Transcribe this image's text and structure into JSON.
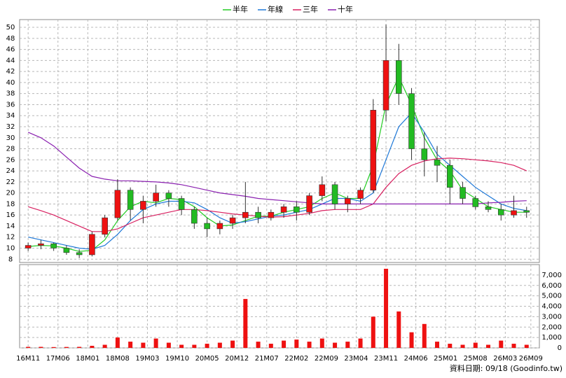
{
  "chart_data": {
    "type": "candlestick",
    "x": [
      0,
      3,
      6,
      9,
      12,
      15,
      18,
      21,
      24,
      27,
      30,
      33,
      36,
      39,
      42,
      45,
      48,
      51,
      54,
      57,
      60,
      63,
      66,
      69,
      72,
      75,
      78,
      81,
      84,
      87,
      90,
      93,
      96,
      99,
      102,
      105,
      108,
      111,
      114,
      117
    ],
    "open": [
      10,
      10.5,
      10.8,
      10,
      9.2,
      8.8,
      12.5,
      15.5,
      20.5,
      17,
      18.5,
      20,
      19,
      17,
      14.5,
      13.5,
      14.5,
      15.5,
      16.5,
      15.5,
      16.5,
      17.5,
      16.5,
      19.5,
      21.5,
      18,
      19,
      20.5,
      35,
      44,
      38,
      28,
      26,
      25,
      21,
      19,
      17.5,
      17,
      16,
      16.8
    ],
    "high": [
      11,
      11.5,
      11,
      10.5,
      9.8,
      13,
      16,
      22.5,
      21,
      19.5,
      21.5,
      20.5,
      19.5,
      17.5,
      15.5,
      15,
      16,
      22,
      17.5,
      17,
      18,
      18.5,
      20,
      23,
      22,
      19.5,
      21,
      37,
      50.5,
      47,
      39,
      31,
      28.5,
      26,
      22,
      19.5,
      18.5,
      18,
      19.5,
      17.5
    ],
    "low": [
      9.5,
      9.8,
      9.5,
      8.8,
      8.2,
      8.5,
      12,
      15,
      15,
      14.5,
      17.5,
      17.5,
      16,
      13.5,
      12,
      12.5,
      13.5,
      14.5,
      14.5,
      15,
      15.5,
      15,
      16,
      18.5,
      17,
      16.5,
      18,
      20,
      33,
      36,
      26,
      23,
      22,
      18,
      18,
      17,
      16.5,
      15,
      15.5,
      15.5
    ],
    "close": [
      10.5,
      10.8,
      10,
      9.2,
      8.8,
      12.5,
      15.5,
      20.5,
      17,
      18.5,
      20,
      19,
      17,
      14.5,
      13.5,
      14.5,
      15.5,
      16.5,
      15.5,
      16.5,
      17.5,
      16.5,
      19.5,
      21.5,
      18,
      19,
      20.5,
      35,
      44,
      38,
      28,
      26,
      25,
      21,
      19,
      17.5,
      17,
      16,
      16.8,
      16.5
    ],
    "up_color": "#ee1111",
    "down_color": "#22bb22",
    "series": [
      {
        "name": "半年",
        "color": "#22cc22",
        "values": [
          10.3,
          10.5,
          10.4,
          10,
          9.4,
          9.6,
          11.5,
          15,
          17.5,
          18.5,
          18.2,
          19,
          18.8,
          17.5,
          15.5,
          14,
          14.2,
          15,
          15.8,
          15.8,
          16.5,
          17,
          17.5,
          19,
          20,
          19,
          19,
          25,
          36,
          41,
          36,
          30,
          26,
          24,
          20.5,
          19,
          17.5,
          17,
          16.5,
          16.5
        ]
      },
      {
        "name": "年線",
        "color": "#1e78d8",
        "values": [
          12,
          11.5,
          11,
          10.5,
          10,
          9.8,
          10.5,
          12.5,
          15,
          17,
          18,
          18.5,
          18.5,
          18.2,
          17,
          15.5,
          14.5,
          14.8,
          15.3,
          15.8,
          16,
          16.5,
          17,
          18,
          19,
          19,
          18.5,
          20,
          26,
          32,
          34.5,
          31,
          27,
          25,
          23,
          21,
          19.5,
          18,
          17.2,
          16.8
        ]
      },
      {
        "name": "三年",
        "color": "#d82060",
        "values": [
          17.5,
          16.8,
          16,
          15,
          14,
          13,
          13,
          13.5,
          14.5,
          15.5,
          16,
          16.5,
          17,
          17,
          16.8,
          16.5,
          16.2,
          16,
          15.8,
          15.6,
          15.7,
          16,
          16.3,
          16.8,
          17,
          17,
          17,
          18,
          21,
          23.5,
          25,
          25.8,
          26.2,
          26.3,
          26.2,
          26,
          25.8,
          25.5,
          25,
          24
        ]
      },
      {
        "name": "十年",
        "color": "#8a20b0",
        "values": [
          31,
          30,
          28.5,
          26.5,
          24.5,
          23,
          22.5,
          22.2,
          22.2,
          22.1,
          22,
          21.8,
          21.5,
          21,
          20.5,
          20,
          19.7,
          19.4,
          19,
          18.8,
          18.6,
          18.4,
          18.2,
          18,
          18,
          18,
          18,
          18,
          18,
          18,
          18,
          18,
          18,
          18,
          18,
          18,
          18.2,
          18.3,
          18.5,
          18.6
        ]
      }
    ],
    "xlim": [
      -2,
      120
    ],
    "xticks": [
      {
        "value": 0,
        "label": "16M11"
      },
      {
        "value": 7,
        "label": "17M06"
      },
      {
        "value": 14,
        "label": "18M01"
      },
      {
        "value": 21,
        "label": "18M08"
      },
      {
        "value": 28,
        "label": "19M03"
      },
      {
        "value": 35,
        "label": "19M10"
      },
      {
        "value": 42,
        "label": "20M05"
      },
      {
        "value": 49,
        "label": "20M12"
      },
      {
        "value": 56,
        "label": "21M07"
      },
      {
        "value": 63,
        "label": "22M02"
      },
      {
        "value": 70,
        "label": "22M09"
      },
      {
        "value": 77,
        "label": "23M04"
      },
      {
        "value": 84,
        "label": "23M11"
      },
      {
        "value": 91,
        "label": "24M06"
      },
      {
        "value": 98,
        "label": "25M01"
      },
      {
        "value": 105,
        "label": "25M08"
      },
      {
        "value": 112,
        "label": "26M03"
      },
      {
        "value": 118,
        "label": "26M09"
      }
    ],
    "ylim": [
      7.4,
      51.4
    ],
    "yticks": [
      8,
      10,
      12,
      14,
      16,
      18,
      20,
      22,
      24,
      26,
      28,
      30,
      32,
      34,
      36,
      38,
      40,
      42,
      44,
      46,
      48,
      50
    ],
    "grid": true,
    "volume": {
      "color": "#ee1111",
      "values": [
        100,
        100,
        80,
        90,
        100,
        200,
        300,
        1000,
        600,
        500,
        900,
        500,
        300,
        300,
        400,
        500,
        700,
        4700,
        600,
        400,
        700,
        800,
        600,
        900,
        500,
        600,
        900,
        3000,
        7600,
        3500,
        1500,
        2300,
        600,
        400,
        300,
        500,
        300,
        700,
        400,
        300
      ],
      "ylim": [
        0,
        8000
      ],
      "yticks": [
        0,
        {
          "value": 1000,
          "label": "1,000"
        },
        {
          "value": 2000,
          "label": "2,000"
        },
        {
          "value": 3000,
          "label": "3,000"
        },
        {
          "value": 4000,
          "label": "4,000"
        },
        {
          "value": 5000,
          "label": "5,000"
        },
        {
          "value": 6000,
          "label": "6,000"
        },
        {
          "value": 7000,
          "label": "7,000"
        }
      ]
    },
    "footnote": "資料日期: 09/18 (Goodinfo.tw)"
  }
}
